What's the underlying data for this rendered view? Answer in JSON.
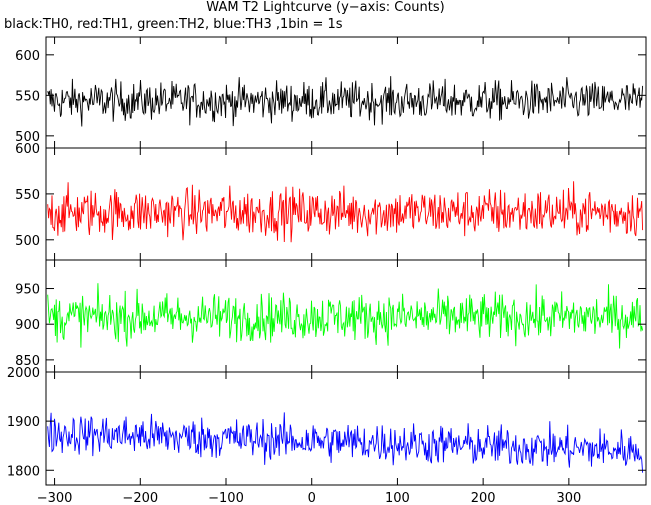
{
  "chart_data": {
    "type": "line",
    "title": "WAM T2 Lightcurve (y−axis: Counts)",
    "subtitle": "black:TH0, red:TH1, green:TH2, blue:TH3 ,1bin = 1s",
    "x_range": [
      -310,
      390
    ],
    "x_ticks": [
      -300,
      -200,
      -100,
      0,
      100,
      200,
      300
    ],
    "panels": [
      {
        "series": "TH0",
        "color": "#000000",
        "ylim": [
          485,
          622
        ],
        "y_ticks": [
          500,
          550,
          600
        ],
        "mean": 543,
        "spread": 22
      },
      {
        "series": "TH1",
        "color": "#ff0000",
        "ylim": [
          478,
          600
        ],
        "y_ticks": [
          500,
          550,
          600
        ],
        "mean": 530,
        "spread": 24
      },
      {
        "series": "TH2",
        "color": "#00ff00",
        "ylim": [
          833,
          990
        ],
        "y_ticks": [
          850,
          900,
          950
        ],
        "mean": 910,
        "spread": 30
      },
      {
        "series": "TH3",
        "color": "#0000ff",
        "ylim": [
          1770,
          2000
        ],
        "y_ticks": [
          1800,
          1900,
          2000
        ],
        "mean": 1860,
        "spread": 38
      }
    ]
  }
}
